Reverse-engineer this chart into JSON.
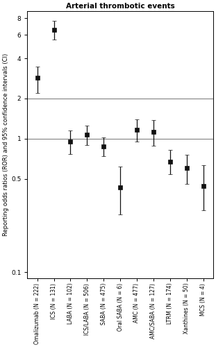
{
  "title": "Arterial thrombotic events",
  "ylabel": "Reporting odds ratios (ROR) and 95% confidence intervals (CI)",
  "categories": [
    "Omalizumab (N = 222)",
    "ICS (N = 131)",
    "LABA (N = 102)",
    "ICS/LABA (N = 506)",
    "SABA (N = 475)",
    "Oral SABA (N = 6)",
    "AMC (N = 477)",
    "AMC/SABA (N = 127)",
    "LTRM (N = 174)",
    "Xanthines (N = 50)",
    "MCS (N = 4)"
  ],
  "ror": [
    2.85,
    6.55,
    0.95,
    1.07,
    0.87,
    0.43,
    1.17,
    1.12,
    0.67,
    0.6,
    0.44
  ],
  "ci_low": [
    2.2,
    5.55,
    0.77,
    0.9,
    0.74,
    0.27,
    0.95,
    0.88,
    0.54,
    0.46,
    0.29
  ],
  "ci_high": [
    3.45,
    7.65,
    1.15,
    1.25,
    1.02,
    0.62,
    1.4,
    1.38,
    0.82,
    0.76,
    0.63
  ],
  "ref_line_1": 1.0,
  "ref_line_2": 2.0,
  "ylim_log": [
    0.09,
    9.0
  ],
  "yticks": [
    0.1,
    0.5,
    1,
    2,
    4,
    6,
    8
  ],
  "ytick_labels": [
    "0.1",
    "0.5",
    "1",
    "2",
    "4",
    "6",
    "8"
  ],
  "marker": "s",
  "marker_size": 4,
  "color": "#111111",
  "capsize": 2.5,
  "elinewidth": 0.9,
  "linewidth": 0.9,
  "title_fontsize": 7.5,
  "label_fontsize": 6.0,
  "tick_fontsize": 6.5,
  "xtick_fontsize": 5.5,
  "background_color": "#ffffff"
}
